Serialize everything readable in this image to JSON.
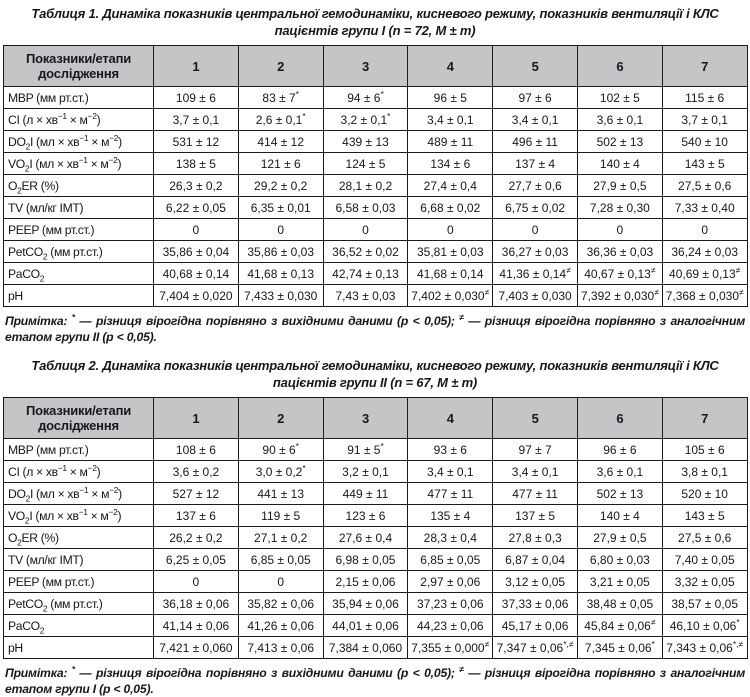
{
  "colors": {
    "header_bg": "#c5c5c8",
    "border": "#1b1b1b",
    "text": "#17171f"
  },
  "tables": [
    {
      "caption": "Таблиця 1. Динаміка показників центральної гемодинаміки, кисневого режиму, показників вентиляції і КЛС пацієнтів групи I (n = 72, M ± m)",
      "header": [
        "Показники/етапи дослідження",
        "1",
        "2",
        "3",
        "4",
        "5",
        "6",
        "7"
      ],
      "rows": [
        [
          "MBP (мм рт.ст.)",
          "109 ± 6",
          "83 ± 7^{*}",
          "94 ± 6^{*}",
          "96 ± 5",
          "97 ± 6",
          "102 ± 5",
          "115 ± 6"
        ],
        [
          "CI (л × хв^{−1} × м^{−2})",
          "3,7 ± 0,1",
          "2,6 ± 0,1^{*}",
          "3,2 ± 0,1^{*}",
          "3,4 ± 0,1",
          "3,4 ± 0,1",
          "3,6 ± 0,1",
          "3,7 ± 0,1"
        ],
        [
          "DO_{2}I (мл × хв^{−1} × м^{−2})",
          "531 ± 12",
          "414 ± 12",
          "439 ± 13",
          "489 ± 11",
          "496 ± 11",
          "502 ± 13",
          "540 ± 10"
        ],
        [
          "VO_{2}I (мл × хв^{−1} × м^{−2})",
          "138 ± 5",
          "121 ± 6",
          "124 ± 5",
          "134 ± 6",
          "137 ± 4",
          "140 ± 4",
          "143 ± 5"
        ],
        [
          "O_{2}ER (%)",
          "26,3 ± 0,2",
          "29,2 ± 0,2",
          "28,1 ± 0,2",
          "27,4 ± 0,4",
          "27,7 ± 0,6",
          "27,9 ± 0,5",
          "27,5 ± 0,6"
        ],
        [
          "TV (мл/кг ІМТ)",
          "6,22 ± 0,05",
          "6,35 ± 0,01",
          "6,58 ± 0,03",
          "6,68 ± 0,02",
          "6,75 ± 0,02",
          "7,28 ± 0,30",
          "7,33 ± 0,40"
        ],
        [
          "PEEP (мм рт.ст.)",
          "0",
          "0",
          "0",
          "0",
          "0",
          "0",
          "0"
        ],
        [
          "PetCO_{2} (мм рт.ст.)",
          "35,86 ± 0,04",
          "35,86 ± 0,03",
          "36,52 ± 0,02",
          "35,81 ± 0,03",
          "36,27 ± 0,03",
          "36,36 ± 0,03",
          "36,24 ± 0,03"
        ],
        [
          "PaCO_{2}",
          "40,68 ± 0,14",
          "41,68 ± 0,13",
          "42,74 ± 0,13",
          "41,68 ± 0,14",
          "41,36 ± 0,14^{≠}",
          "40,67 ± 0,13^{≠}",
          "40,69 ± 0,13^{≠}"
        ],
        [
          "pH",
          "7,404 ± 0,020",
          "7,433 ± 0,030",
          "7,43 ± 0,03",
          "7,402 ± 0,030^{≠}",
          "7,403 ± 0,030",
          "7,392 ± 0,030^{≠}",
          "7,368 ± 0,030^{≠}"
        ]
      ],
      "footnote": "Примітка: ^{*} — різниця вірогідна порівняно з вихідними даними (p < 0,05); ^{≠} — різниця вірогідна порівняно з аналогічним етапом групи II (p < 0,05)."
    },
    {
      "caption": "Таблиця 2. Динаміка показників центральної гемодинаміки, кисневого режиму, показників вентиляції і КЛС пацієнтів групи II (n = 67, M ± m)",
      "header": [
        "Показники/етапи дослідження",
        "1",
        "2",
        "3",
        "4",
        "5",
        "6",
        "7"
      ],
      "rows": [
        [
          "MBP (мм рт.ст.)",
          "108 ± 6",
          "90 ± 6^{*}",
          "91 ± 5^{*}",
          "93 ± 6",
          "97 ± 7",
          "96 ± 6",
          "105 ± 6"
        ],
        [
          "CI (л × хв^{−1} × м^{−2})",
          "3,6 ± 0,2",
          "3,0 ± 0,2^{*}",
          "3,2 ± 0,1",
          "3,4 ± 0,1",
          "3,4 ± 0,1",
          "3,6 ± 0,1",
          "3,8 ± 0,1"
        ],
        [
          "DO_{2}I (мл × хв^{−1} × м^{−2})",
          "527 ± 12",
          "441 ± 13",
          "449 ± 11",
          "477 ± 11",
          "477 ± 11",
          "502 ± 13",
          "520 ± 10"
        ],
        [
          "VO_{2}I (мл × хв^{−1} × м^{−2})",
          "137 ± 6",
          "119 ± 5",
          "123 ± 6",
          "135 ± 4",
          "137 ± 5",
          "140 ± 4",
          "143 ± 5"
        ],
        [
          "O_{2}ER (%)",
          "26,2 ± 0,2",
          "27,1 ± 0,2",
          "27,6 ± 0,4",
          "28,3 ± 0,4",
          "27,8 ± 0,3",
          "27,9 ± 0,5",
          "27,5 ± 0,6"
        ],
        [
          "TV (мл/кг ІМТ)",
          "6,25 ± 0,05",
          "6,85 ± 0,05",
          "6,98 ± 0,05",
          "6,85 ± 0,05",
          "6,87 ± 0,04",
          "6,80 ± 0,03",
          "7,40 ± 0,05"
        ],
        [
          "PEEP (мм рт.ст.)",
          "0",
          "0",
          "2,15 ± 0,06",
          "2,97 ± 0,06",
          "3,12 ± 0,05",
          "3,21 ± 0,05",
          "3,32 ± 0,05"
        ],
        [
          "PetCO_{2} (мм рт.ст.)",
          "36,18 ± 0,06",
          "35,82 ± 0,06",
          "35,94 ± 0,06",
          "37,23 ± 0,06",
          "37,33 ± 0,06",
          "38,48 ± 0,05",
          "38,57 ± 0,05"
        ],
        [
          "PaCO_{2}",
          "41,14 ± 0,06",
          "41,26 ± 0,06",
          "44,01 ± 0,06",
          "44,23 ± 0,06",
          "45,17 ± 0,06",
          "45,84 ± 0,06^{≠}",
          "46,10 ± 0,06^{*}"
        ],
        [
          "pH",
          "7,421 ± 0,060",
          "7,413 ± 0,06",
          "7,384 ± 0,060",
          "7,355 ± 0,000^{≠}",
          "7,347 ± 0,06^{*,≠}",
          "7,345 ± 0,06^{*}",
          "7,343 ± 0,06^{*,≠}"
        ]
      ],
      "footnote": "Примітка: ^{*} — різниця вірогідна порівняно з вихідними даними (p < 0,05); ^{≠} — різниця вірогідна порівняно з аналогічним етапом групи I (p < 0,05)."
    }
  ]
}
